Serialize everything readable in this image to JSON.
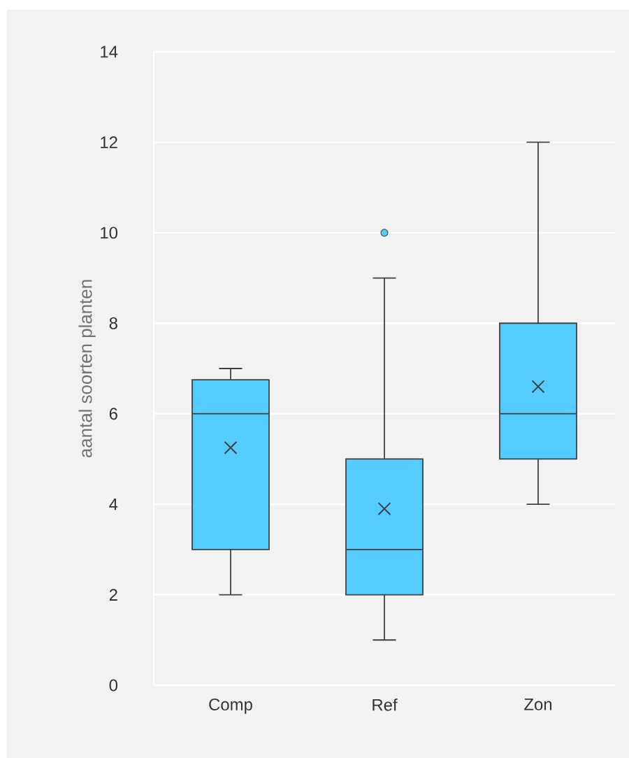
{
  "chart_data": {
    "type": "box",
    "ylabel": "aantal soorten planten",
    "categories": [
      "Comp",
      "Ref",
      "Zon"
    ],
    "series": [
      {
        "color": "#55ccff",
        "boxes": [
          {
            "low": 2,
            "q1": 3,
            "median": 6,
            "q3": 6.75,
            "high": 7,
            "mean": 5.25
          },
          {
            "low": 1,
            "q1": 2,
            "median": 3,
            "q3": 5,
            "high": 9,
            "mean": 3.9,
            "outliers": [
              10
            ]
          },
          {
            "low": 4,
            "q1": 5,
            "median": 6,
            "q3": 8,
            "high": 12,
            "mean": 6.6
          }
        ]
      }
    ],
    "ylim": [
      0,
      14
    ],
    "yticks": [
      0,
      2,
      4,
      6,
      8,
      10,
      12,
      14
    ],
    "grid": "y"
  }
}
